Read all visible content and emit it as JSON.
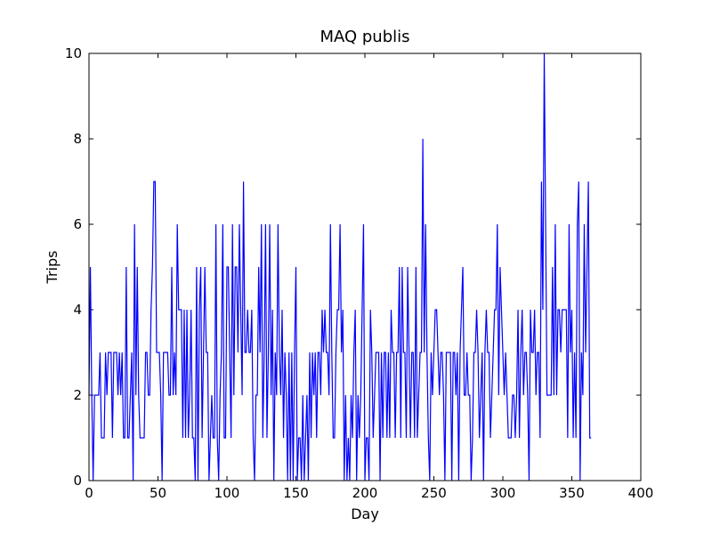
{
  "chart_data": {
    "type": "line",
    "title": "MAQ publis",
    "x_label": "Day",
    "y_label": "Trips",
    "xlim": [
      0,
      400
    ],
    "ylim": [
      0,
      10
    ],
    "xticks": [
      0,
      50,
      100,
      150,
      200,
      250,
      300,
      350,
      400
    ],
    "yticks": [
      0,
      2,
      4,
      6,
      8,
      10
    ],
    "x": [
      0,
      1,
      2,
      3,
      4,
      5,
      6,
      7,
      8,
      9,
      10,
      11,
      12,
      13,
      14,
      15,
      16,
      17,
      18,
      19,
      20,
      21,
      22,
      23,
      24,
      25,
      26,
      27,
      28,
      29,
      30,
      31,
      32,
      33,
      34,
      35,
      36,
      37,
      38,
      39,
      40,
      41,
      42,
      43,
      44,
      45,
      46,
      47,
      48,
      49,
      50,
      51,
      52,
      53,
      54,
      55,
      56,
      57,
      58,
      59,
      60,
      61,
      62,
      63,
      64,
      65,
      66,
      67,
      68,
      69,
      70,
      71,
      72,
      73,
      74,
      75,
      76,
      77,
      78,
      79,
      80,
      81,
      82,
      83,
      84,
      85,
      86,
      87,
      88,
      89,
      90,
      91,
      92,
      93,
      94,
      95,
      96,
      97,
      98,
      99,
      100,
      101,
      102,
      103,
      104,
      105,
      106,
      107,
      108,
      109,
      110,
      111,
      112,
      113,
      114,
      115,
      116,
      117,
      118,
      119,
      120,
      121,
      122,
      123,
      124,
      125,
      126,
      127,
      128,
      129,
      130,
      131,
      132,
      133,
      134,
      135,
      136,
      137,
      138,
      139,
      140,
      141,
      142,
      143,
      144,
      145,
      146,
      147,
      148,
      149,
      150,
      151,
      152,
      153,
      154,
      155,
      156,
      157,
      158,
      159,
      160,
      161,
      162,
      163,
      164,
      165,
      166,
      167,
      168,
      169,
      170,
      171,
      172,
      173,
      174,
      175,
      176,
      177,
      178,
      179,
      180,
      181,
      182,
      183,
      184,
      185,
      186,
      187,
      188,
      189,
      190,
      191,
      192,
      193,
      194,
      195,
      196,
      197,
      198,
      199,
      200,
      201,
      202,
      203,
      204,
      205,
      206,
      207,
      208,
      209,
      210,
      211,
      212,
      213,
      214,
      215,
      216,
      217,
      218,
      219,
      220,
      221,
      222,
      223,
      224,
      225,
      226,
      227,
      228,
      229,
      230,
      231,
      232,
      233,
      234,
      235,
      236,
      237,
      238,
      239,
      240,
      241,
      242,
      243,
      244,
      245,
      246,
      247,
      248,
      249,
      250,
      251,
      252,
      253,
      254,
      255,
      256,
      257,
      258,
      259,
      260,
      261,
      262,
      263,
      264,
      265,
      266,
      267,
      268,
      269,
      270,
      271,
      272,
      273,
      274,
      275,
      276,
      277,
      278,
      279,
      280,
      281,
      282,
      283,
      284,
      285,
      286,
      287,
      288,
      289,
      290,
      291,
      292,
      293,
      294,
      295,
      296,
      297,
      298,
      299,
      300,
      301,
      302,
      303,
      304,
      305,
      306,
      307,
      308,
      309,
      310,
      311,
      312,
      313,
      314,
      315,
      316,
      317,
      318,
      319,
      320,
      321,
      322,
      323,
      324,
      325,
      326,
      327,
      328,
      329,
      330,
      331,
      332,
      333,
      334,
      335,
      336,
      337,
      338,
      339,
      340,
      341,
      342,
      343,
      344,
      345,
      346,
      347,
      348,
      349,
      350,
      351,
      352,
      353,
      354,
      355,
      356,
      357,
      358,
      359,
      360,
      361,
      362,
      363,
      364
    ],
    "series": [
      {
        "color": "#0000ff",
        "values": [
          2,
          5,
          2,
          0,
          2,
          2,
          2,
          2,
          3,
          1,
          1,
          1,
          3,
          2,
          3,
          3,
          3,
          1,
          3,
          3,
          3,
          2,
          3,
          2,
          3,
          1,
          1,
          5,
          1,
          1,
          2,
          3,
          0,
          6,
          2,
          5,
          2,
          1,
          1,
          1,
          1,
          3,
          3,
          2,
          2,
          4,
          5,
          7,
          7,
          3,
          3,
          3,
          2,
          0,
          3,
          3,
          3,
          3,
          2,
          2,
          5,
          2,
          3,
          2,
          6,
          4,
          4,
          4,
          1,
          4,
          1,
          4,
          1,
          2,
          4,
          1,
          1,
          0,
          5,
          0,
          4,
          5,
          1,
          3,
          5,
          3,
          3,
          0,
          1,
          2,
          1,
          1,
          6,
          1,
          0,
          2,
          3,
          6,
          1,
          1,
          5,
          5,
          3,
          1,
          6,
          2,
          5,
          5,
          3,
          6,
          4,
          2,
          7,
          3,
          3,
          4,
          3,
          3,
          4,
          1,
          0,
          2,
          2,
          5,
          3,
          6,
          1,
          3,
          6,
          1,
          3,
          6,
          2,
          4,
          0,
          3,
          2,
          6,
          3,
          2,
          4,
          1,
          3,
          2,
          0,
          3,
          0,
          3,
          0,
          3,
          5,
          0,
          1,
          1,
          0,
          2,
          0,
          1,
          2,
          0,
          3,
          1,
          3,
          2,
          3,
          1,
          3,
          3,
          2,
          4,
          3,
          4,
          3,
          3,
          2,
          6,
          3,
          1,
          1,
          3,
          4,
          4,
          6,
          3,
          4,
          0,
          2,
          0,
          1,
          0,
          2,
          1,
          3,
          4,
          0,
          2,
          1,
          2,
          4,
          6,
          0,
          1,
          1,
          0,
          4,
          3,
          1,
          2,
          3,
          3,
          3,
          0,
          3,
          1,
          3,
          3,
          1,
          3,
          1,
          4,
          3,
          3,
          1,
          3,
          3,
          5,
          1,
          5,
          3,
          3,
          1,
          5,
          3,
          1,
          3,
          3,
          1,
          5,
          1,
          2,
          3,
          3,
          8,
          3,
          6,
          3,
          1,
          0,
          3,
          2,
          3,
          4,
          4,
          3,
          2,
          3,
          3,
          2,
          0,
          3,
          3,
          3,
          3,
          0,
          3,
          3,
          2,
          3,
          0,
          3,
          4,
          5,
          2,
          2,
          3,
          2,
          2,
          0,
          1,
          3,
          3,
          4,
          3,
          1,
          2,
          3,
          0,
          3,
          4,
          3,
          3,
          1,
          2,
          3,
          4,
          4,
          6,
          2,
          5,
          4,
          3,
          2,
          3,
          2,
          1,
          1,
          1,
          2,
          2,
          1,
          2,
          4,
          1,
          3,
          4,
          2,
          3,
          3,
          2,
          0,
          4,
          3,
          3,
          4,
          2,
          3,
          3,
          1,
          7,
          4,
          10,
          6,
          2,
          2,
          2,
          2,
          5,
          2,
          6,
          2,
          4,
          4,
          3,
          4,
          4,
          4,
          4,
          1,
          6,
          3,
          4,
          1,
          3,
          1,
          6,
          7,
          0,
          3,
          2,
          6,
          3,
          5,
          7,
          1,
          1
        ]
      }
    ]
  }
}
